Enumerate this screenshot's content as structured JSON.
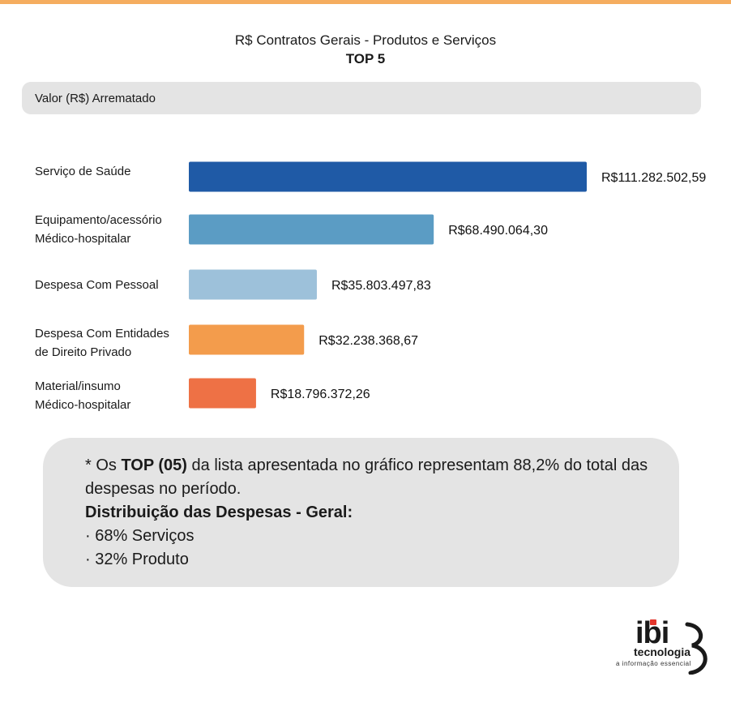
{
  "header": {
    "title": "R$ Contratos Gerais - Produtos e Serviços",
    "subtitle": "TOP 5"
  },
  "colors": {
    "accent_bar": "#f5ad5f",
    "panel_bg": "#e4e4e4"
  },
  "chart_data": {
    "type": "bar",
    "orientation": "horizontal",
    "title": "R$ Contratos Gerais - Produtos e Serviços",
    "subtitle": "TOP 5",
    "xlabel": "Valor (R$) Arrematado",
    "ylabel": "",
    "grid": false,
    "legend": "none",
    "categories": [
      "Serviço de Saúde",
      "Equipamento/acessório\nMédico-hospitalar",
      "Despesa Com Pessoal",
      "Despesa Com Entidades\nde Direito Privado",
      "Material/insumo\nMédico-hospitalar"
    ],
    "values": [
      111282502.59,
      68490064.3,
      35803497.83,
      32238368.67,
      18796372.26
    ],
    "value_labels": [
      "R$111.282.502,59",
      "R$68.490.064,30",
      "R$35.803.497,83",
      "R$32.238.368,67",
      "R$18.796.372,26"
    ],
    "bar_colors": [
      "#1f5aa6",
      "#5b9cc4",
      "#9dc1da",
      "#f39c4c",
      "#ee7145"
    ],
    "xlim": [
      0,
      111282502.59
    ]
  },
  "note": {
    "line1_prefix": "* Os ",
    "line1_bold": "TOP (05)",
    "line1_suffix": " da lista apresentada no gráfico representam 88,2% do total das despesas no período.",
    "heading": "Distribuição das Despesas - Geral:",
    "items": [
      "· 68% Serviços",
      "· 32% Produto"
    ]
  },
  "logo": {
    "wordmark": "ibi",
    "name": "tecnologia",
    "tagline": "a informação essencial"
  }
}
